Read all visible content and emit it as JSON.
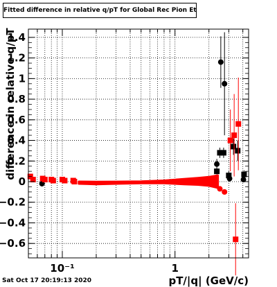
{
  "title": "Fitted difference in relative q/pT for Global Rec Pion EtapT",
  "timestamp": "Sat Oct 17 20:19:13 2020",
  "chart_data": {
    "type": "scatter",
    "title": "Fitted difference in relative q/pT for Global Rec Pion EtapT",
    "xlabel": "pT/|q| (GeV/c)",
    "ylabel": "difference in relative q/pT",
    "xscale": "log",
    "xlim": [
      0.05,
      4.5
    ],
    "ylim": [
      -0.74,
      1.48
    ],
    "yticks": [
      -0.6,
      -0.4,
      -0.2,
      0,
      0.2,
      0.4,
      0.6,
      0.8,
      1,
      1.2,
      1.4
    ],
    "ytick_labels": [
      "−0.6",
      "−0.4",
      "−0.2",
      "0",
      "0.2",
      "0.4",
      "0.6",
      "0.8",
      "1",
      "1.2",
      "1.4"
    ],
    "xticks_major": [
      0.1,
      1
    ],
    "xtick_labels": [
      "10⁻¹",
      "1"
    ],
    "grid": true,
    "series": [
      {
        "color": "#000000",
        "marker": "circle",
        "points": [
          {
            "x": 0.066,
            "y": -0.02,
            "err": 0.01
          },
          {
            "x": 2.35,
            "y": 0.17,
            "err": 0.05
          },
          {
            "x": 2.55,
            "y": 1.16,
            "err": 0.25
          },
          {
            "x": 2.75,
            "y": 0.95,
            "err": 0.5
          },
          {
            "x": 3.05,
            "y": 0.03,
            "err": 0.03
          },
          {
            "x": 4.05,
            "y": 0.02,
            "err": 0.02
          }
        ]
      },
      {
        "color": "#000000",
        "marker": "square",
        "points": [
          {
            "x": 2.35,
            "y": 0.1,
            "err": 0.03
          },
          {
            "x": 2.5,
            "y": 0.28,
            "err": 0.05
          },
          {
            "x": 2.7,
            "y": 0.28,
            "err": 0.05
          },
          {
            "x": 3.0,
            "y": 0.06,
            "err": 0.04
          },
          {
            "x": 3.3,
            "y": 0.34,
            "err": 0.08
          },
          {
            "x": 3.6,
            "y": 0.3,
            "err": 0.1
          },
          {
            "x": 4.1,
            "y": 0.07,
            "err": 0.04
          }
        ]
      },
      {
        "color": "#ff0000",
        "marker": "square",
        "points": [
          {
            "x": 0.052,
            "y": 0.05,
            "err": 0.02
          },
          {
            "x": 0.055,
            "y": 0.02,
            "err": 0.02
          },
          {
            "x": 0.067,
            "y": 0.03,
            "err": 0.02
          },
          {
            "x": 0.07,
            "y": 0.02,
            "err": 0.02
          },
          {
            "x": 0.08,
            "y": 0.02,
            "err": 0.02
          },
          {
            "x": 0.083,
            "y": 0.01,
            "err": 0.02
          },
          {
            "x": 0.1,
            "y": 0.02,
            "err": 0.02
          },
          {
            "x": 0.105,
            "y": 0.01,
            "err": 0.02
          },
          {
            "x": 0.125,
            "y": 0.01,
            "err": 0.02
          },
          {
            "x": 0.128,
            "y": 0.0,
            "err": 0.02
          },
          {
            "x": 3.1,
            "y": 0.4,
            "err": 0.3
          },
          {
            "x": 3.35,
            "y": 0.45,
            "err": 0.4
          },
          {
            "x": 3.45,
            "y": -0.56,
            "err": 0.35
          },
          {
            "x": 3.65,
            "y": 0.56,
            "err": 0.45
          }
        ]
      },
      {
        "color": "#ff0000",
        "marker": "circle",
        "points": [
          {
            "x": 2.5,
            "y": -0.07,
            "err": 0.02
          },
          {
            "x": 2.75,
            "y": -0.1,
            "err": 0.02
          }
        ]
      }
    ],
    "bands": [
      {
        "color": "#ff0000",
        "x": [
          0.14,
          0.2,
          0.3,
          0.5,
          0.8,
          1.2,
          1.6,
          2.0,
          2.4
        ],
        "y_upper": [
          0.0,
          -0.002,
          -0.001,
          0.002,
          0.01,
          0.025,
          0.035,
          0.045,
          0.06
        ],
        "y_lower": [
          -0.02,
          -0.025,
          -0.02,
          -0.015,
          -0.015,
          -0.025,
          -0.03,
          -0.04,
          -0.06
        ]
      }
    ]
  }
}
